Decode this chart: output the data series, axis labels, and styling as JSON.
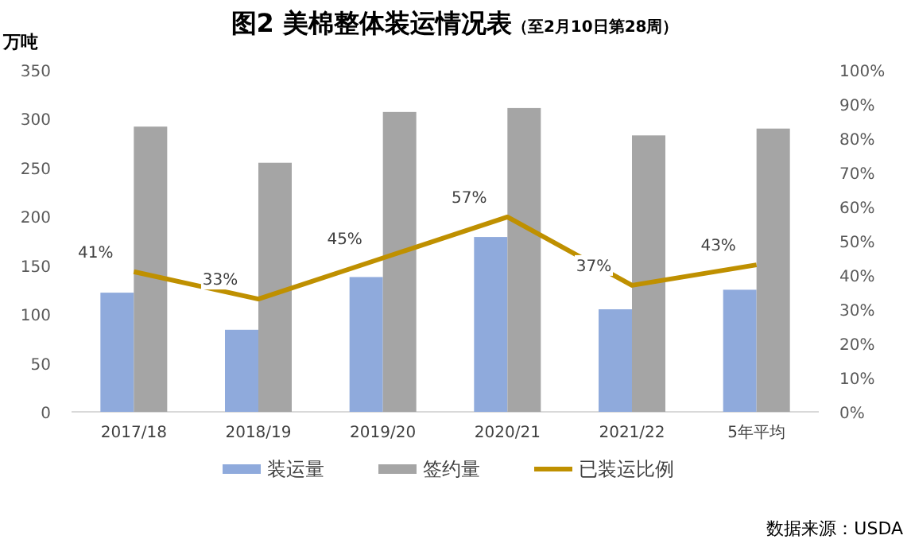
{
  "chart_data": {
    "type": "bar",
    "title": "图2 美棉整体装运情况表",
    "subtitle": "（至2月10日第28周）",
    "ylabel": "万吨",
    "categories": [
      "2017/18",
      "2018/19",
      "2019/20",
      "2020/21",
      "2021/22",
      "5年平均"
    ],
    "series": [
      {
        "name": "装运量",
        "color": "#8faadc",
        "values": [
          122,
          84,
          138,
          179,
          105,
          125
        ]
      },
      {
        "name": "签约量",
        "color": "#a5a5a5",
        "values": [
          292,
          255,
          307,
          311,
          283,
          290
        ]
      },
      {
        "name": "已装运比例",
        "type": "line",
        "axis": "y2",
        "color": "#bf9000",
        "values": [
          41,
          33,
          45,
          57,
          37,
          43
        ],
        "value_labels": [
          "41%",
          "33%",
          "45%",
          "57%",
          "37%",
          "43%"
        ]
      }
    ],
    "ylim": [
      0,
      350
    ],
    "yticks": [
      0,
      50,
      100,
      150,
      200,
      250,
      300,
      350
    ],
    "y2lim": [
      0,
      100
    ],
    "y2ticks": [
      {
        "value": 0,
        "label": "0%"
      },
      {
        "value": 10,
        "label": "10%"
      },
      {
        "value": 20,
        "label": "20%"
      },
      {
        "value": 30,
        "label": "30%"
      },
      {
        "value": 40,
        "label": "40%"
      },
      {
        "value": 50,
        "label": "50%"
      },
      {
        "value": 60,
        "label": "60%"
      },
      {
        "value": 70,
        "label": "70%"
      },
      {
        "value": 80,
        "label": "80%"
      },
      {
        "value": 90,
        "label": "90%"
      },
      {
        "value": 100,
        "label": "100%"
      }
    ],
    "legend": "bottom",
    "marker": "none",
    "annotations": [
      "数据来源：USDA"
    ]
  }
}
